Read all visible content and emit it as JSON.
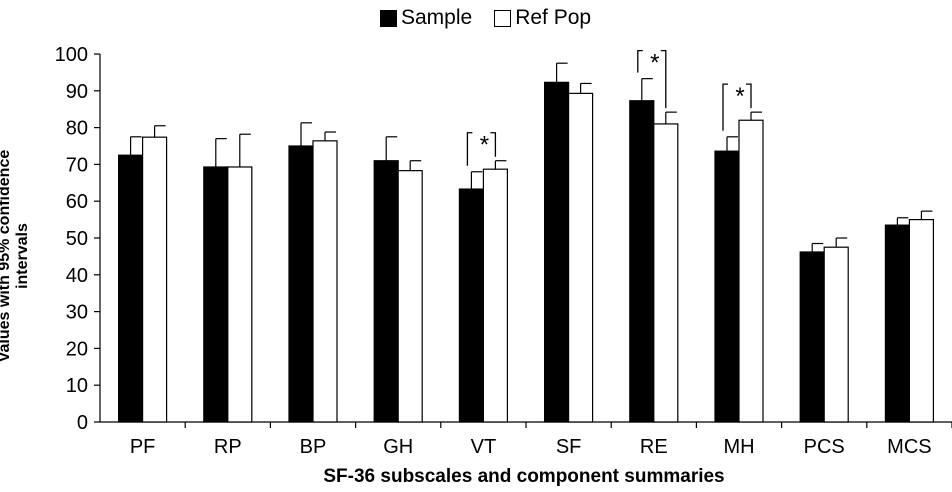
{
  "legend": {
    "sample_label": "Sample",
    "refpop_label": "Ref Pop",
    "sample_color": "#000000",
    "refpop_color": "#ffffff"
  },
  "chart_data": {
    "type": "bar",
    "xlabel": "SF-36 subscales and component summaries",
    "ylabel": "Values with 95% confidence intervals",
    "ylim": [
      0,
      100
    ],
    "yticks": [
      0,
      10,
      20,
      30,
      40,
      50,
      60,
      70,
      80,
      90,
      100
    ],
    "categories": [
      "PF",
      "RP",
      "BP",
      "GH",
      "VT",
      "SF",
      "RE",
      "MH",
      "PCS",
      "MCS"
    ],
    "series": [
      {
        "name": "Sample",
        "color": "#000000",
        "values": [
          72.5,
          69.3,
          75.0,
          71.0,
          63.3,
          92.3,
          87.3,
          73.6,
          46.2,
          53.5
        ],
        "ci_upper": [
          77.5,
          77.0,
          81.3,
          77.5,
          68.0,
          97.5,
          93.3,
          77.5,
          48.5,
          55.5
        ]
      },
      {
        "name": "Ref Pop",
        "color": "#ffffff",
        "values": [
          77.4,
          69.3,
          76.4,
          68.3,
          68.7,
          89.3,
          81.0,
          82.0,
          47.5,
          55.0
        ],
        "ci_upper": [
          80.5,
          78.2,
          78.8,
          71.0,
          71.0,
          92.0,
          84.2,
          84.2,
          50.0,
          57.3
        ]
      }
    ],
    "significance": [
      {
        "category": "VT",
        "label": "*"
      },
      {
        "category": "RE",
        "label": "*"
      },
      {
        "category": "MH",
        "label": "*"
      }
    ]
  }
}
